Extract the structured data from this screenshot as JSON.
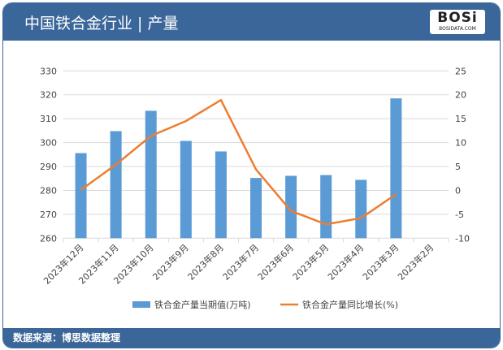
{
  "header": {
    "title": "中国铁合金行业 | 产量",
    "logo_text": "BOSi",
    "logo_sub": "BOSIDATA.COM"
  },
  "footer": {
    "source": "数据来源：博思数据整理"
  },
  "chart_data": {
    "type": "bar+line",
    "categories": [
      "2023年12月",
      "2023年11月",
      "2023年10月",
      "2023年9月",
      "2023年8月",
      "2023年7月",
      "2023年6月",
      "2023年5月",
      "2023年4月",
      "2023年3月",
      "2023年2月"
    ],
    "series": [
      {
        "name": "铁合金产量当期值(万吨)",
        "type": "bar",
        "axis": "left",
        "color": "#5b9bd5",
        "values": [
          295.6,
          304.8,
          313.3,
          300.7,
          296.3,
          285.2,
          286.1,
          286.4,
          284.4,
          318.5,
          null
        ]
      },
      {
        "name": "铁合金产量同比增长(%)",
        "type": "line",
        "axis": "right",
        "color": "#ed7d31",
        "values": [
          0.1,
          5.4,
          11.4,
          14.5,
          18.9,
          4.4,
          -4.3,
          -7.1,
          -5.8,
          -0.8,
          null
        ]
      }
    ],
    "y_left": {
      "range": [
        260,
        330
      ],
      "ticks": [
        260,
        270,
        280,
        290,
        300,
        310,
        320,
        330
      ]
    },
    "y_right": {
      "range": [
        -10,
        25
      ],
      "ticks": [
        -10,
        -5,
        0,
        5,
        10,
        15,
        20,
        25
      ]
    },
    "grid": true,
    "legend": "bottom"
  }
}
